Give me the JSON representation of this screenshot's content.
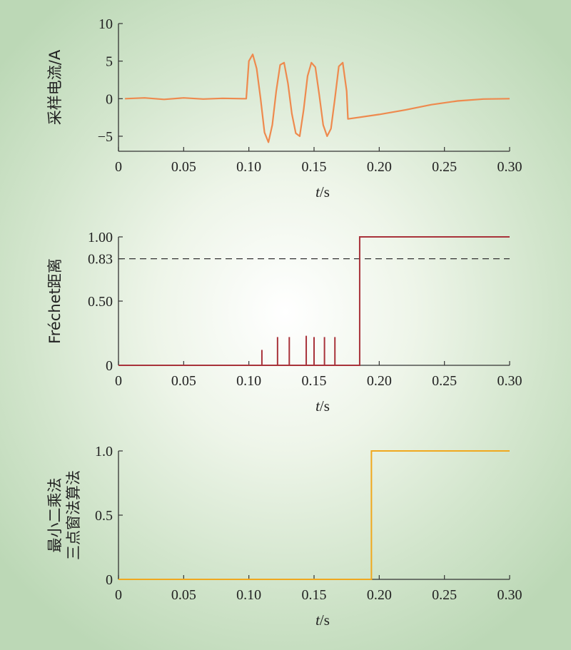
{
  "chart_data": [
    {
      "type": "line",
      "xlabel_italic": "t",
      "xlabel_unit": "/s",
      "ylabel": "采样电流/A",
      "xlim": [
        0,
        0.3
      ],
      "ylim": [
        -7,
        10
      ],
      "xticks": [
        "0",
        "0.05",
        "0.10",
        "0.15",
        "0.20",
        "0.25",
        "0.30"
      ],
      "yticks": [
        {
          "value": 10,
          "label": "10"
        },
        {
          "value": 5,
          "label": "5"
        },
        {
          "value": 0,
          "label": "0"
        },
        {
          "value": -5,
          "label": "−5"
        }
      ],
      "color": "#ee8a4e",
      "grid": false,
      "series": [
        {
          "x": [
            0.005,
            0.02,
            0.035,
            0.05,
            0.065,
            0.08,
            0.095,
            0.098,
            0.1,
            0.103,
            0.106,
            0.109,
            0.112,
            0.115,
            0.118,
            0.121,
            0.124,
            0.127,
            0.13,
            0.133,
            0.136,
            0.139,
            0.142,
            0.145,
            0.148,
            0.151,
            0.154,
            0.157,
            0.16,
            0.163,
            0.166,
            0.169,
            0.172,
            0.175,
            0.176,
            0.2,
            0.22,
            0.24,
            0.26,
            0.28,
            0.3
          ],
          "y": [
            0,
            0.1,
            -0.1,
            0.1,
            -0.05,
            0.05,
            0,
            0,
            5,
            5.9,
            4,
            0,
            -4.5,
            -5.8,
            -3.5,
            1,
            4.5,
            4.8,
            2,
            -2,
            -4.6,
            -5,
            -1.5,
            3,
            4.8,
            4.2,
            0.5,
            -3.5,
            -5,
            -4,
            0,
            4.3,
            4.8,
            1,
            -2.7,
            -2.1,
            -1.5,
            -0.8,
            -0.3,
            -0.05,
            0
          ]
        }
      ]
    },
    {
      "type": "line",
      "xlabel_italic": "t",
      "xlabel_unit": "/s",
      "ylabel": "Fréchet距离",
      "xlim": [
        0,
        0.3
      ],
      "ylim": [
        0,
        1.0
      ],
      "xticks": [
        "0",
        "0.05",
        "0.10",
        "0.15",
        "0.20",
        "0.25",
        "0.30"
      ],
      "yticks": [
        {
          "value": 1.0,
          "label": "1.00"
        },
        {
          "value": 0.83,
          "label": "0.83"
        },
        {
          "value": 0.5,
          "label": "0.50"
        },
        {
          "value": 0,
          "label": "0"
        }
      ],
      "threshold": {
        "value": 0.83,
        "style": "dashed",
        "color": "#333333"
      },
      "color": "#a8323a",
      "grid": false,
      "spikes": [
        {
          "x": 0.11,
          "y": 0.12
        },
        {
          "x": 0.122,
          "y": 0.22
        },
        {
          "x": 0.131,
          "y": 0.22
        },
        {
          "x": 0.144,
          "y": 0.23
        },
        {
          "x": 0.15,
          "y": 0.22
        },
        {
          "x": 0.158,
          "y": 0.22
        },
        {
          "x": 0.166,
          "y": 0.22
        }
      ],
      "step": {
        "x": 0.185,
        "before": 0,
        "after": 1.0
      }
    },
    {
      "type": "line",
      "xlabel_italic": "t",
      "xlabel_unit": "/s",
      "ylabel": [
        "最小二乘法",
        "三点窗法算法"
      ],
      "xlim": [
        0,
        0.3
      ],
      "ylim": [
        0,
        1.0
      ],
      "xticks": [
        "0",
        "0.05",
        "0.10",
        "0.15",
        "0.20",
        "0.25",
        "0.30"
      ],
      "yticks": [
        {
          "value": 1.0,
          "label": "1.0"
        },
        {
          "value": 0.5,
          "label": "0.5"
        },
        {
          "value": 0,
          "label": "0"
        }
      ],
      "color": "#f0a81e",
      "grid": false,
      "step": {
        "x": 0.194,
        "before": 0,
        "after": 1.0
      }
    }
  ]
}
